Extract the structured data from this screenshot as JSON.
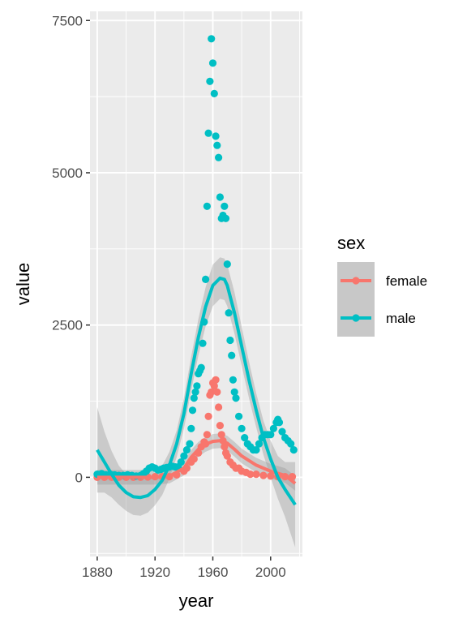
{
  "chart_data": {
    "type": "scatter",
    "xlabel": "year",
    "ylabel": "value",
    "xlim": [
      1875,
      2022
    ],
    "ylim": [
      -1300,
      7650
    ],
    "x_ticks": [
      1880,
      1920,
      1960,
      2000
    ],
    "y_ticks": [
      0,
      2500,
      5000,
      7500
    ],
    "grid": true,
    "legend": {
      "title": "sex",
      "position": "right",
      "entries": [
        "female",
        "male"
      ]
    },
    "colors": {
      "female": "#F8766D",
      "male": "#00BFC4",
      "panel": "#EBEBEB",
      "ribbon": "#999999"
    },
    "series": [
      {
        "name": "female",
        "points": [
          [
            1880,
            0
          ],
          [
            1885,
            0
          ],
          [
            1890,
            0
          ],
          [
            1895,
            0
          ],
          [
            1900,
            0
          ],
          [
            1905,
            0
          ],
          [
            1910,
            0
          ],
          [
            1915,
            5
          ],
          [
            1920,
            10
          ],
          [
            1925,
            10
          ],
          [
            1930,
            10
          ],
          [
            1935,
            40
          ],
          [
            1940,
            100
          ],
          [
            1942,
            150
          ],
          [
            1945,
            250
          ],
          [
            1947,
            300
          ],
          [
            1950,
            400
          ],
          [
            1952,
            500
          ],
          [
            1954,
            580
          ],
          [
            1955,
            550
          ],
          [
            1956,
            700
          ],
          [
            1957,
            1000
          ],
          [
            1958,
            1350
          ],
          [
            1959,
            1400
          ],
          [
            1960,
            1550
          ],
          [
            1961,
            1500
          ],
          [
            1962,
            1600
          ],
          [
            1963,
            1400
          ],
          [
            1964,
            1150
          ],
          [
            1965,
            850
          ],
          [
            1966,
            700
          ],
          [
            1967,
            600
          ],
          [
            1968,
            500
          ],
          [
            1969,
            400
          ],
          [
            1970,
            350
          ],
          [
            1972,
            250
          ],
          [
            1974,
            200
          ],
          [
            1976,
            150
          ],
          [
            1978,
            150
          ],
          [
            1980,
            100
          ],
          [
            1983,
            80
          ],
          [
            1986,
            50
          ],
          [
            1990,
            50
          ],
          [
            1995,
            30
          ],
          [
            2000,
            20
          ],
          [
            2005,
            10
          ],
          [
            2010,
            10
          ],
          [
            2015,
            10
          ]
        ],
        "smooth": [
          [
            1880,
            0
          ],
          [
            1900,
            0
          ],
          [
            1920,
            0
          ],
          [
            1930,
            20
          ],
          [
            1940,
            150
          ],
          [
            1945,
            330
          ],
          [
            1950,
            460
          ],
          [
            1955,
            540
          ],
          [
            1960,
            590
          ],
          [
            1965,
            600
          ],
          [
            1970,
            560
          ],
          [
            1975,
            460
          ],
          [
            1980,
            350
          ],
          [
            1990,
            200
          ],
          [
            2000,
            100
          ],
          [
            2010,
            30
          ],
          [
            2017,
            -100
          ]
        ],
        "smooth_band": 120
      },
      {
        "name": "male",
        "points": [
          [
            1880,
            50
          ],
          [
            1883,
            60
          ],
          [
            1886,
            40
          ],
          [
            1889,
            50
          ],
          [
            1892,
            40
          ],
          [
            1895,
            30
          ],
          [
            1898,
            30
          ],
          [
            1901,
            40
          ],
          [
            1904,
            30
          ],
          [
            1907,
            20
          ],
          [
            1910,
            30
          ],
          [
            1912,
            60
          ],
          [
            1914,
            100
          ],
          [
            1916,
            150
          ],
          [
            1918,
            170
          ],
          [
            1920,
            150
          ],
          [
            1922,
            120
          ],
          [
            1924,
            130
          ],
          [
            1926,
            150
          ],
          [
            1928,
            160
          ],
          [
            1930,
            170
          ],
          [
            1932,
            180
          ],
          [
            1934,
            170
          ],
          [
            1936,
            170
          ],
          [
            1938,
            250
          ],
          [
            1940,
            350
          ],
          [
            1942,
            450
          ],
          [
            1944,
            550
          ],
          [
            1945,
            800
          ],
          [
            1946,
            1100
          ],
          [
            1947,
            1300
          ],
          [
            1948,
            1400
          ],
          [
            1949,
            1500
          ],
          [
            1950,
            1700
          ],
          [
            1951,
            1750
          ],
          [
            1952,
            1800
          ],
          [
            1953,
            2200
          ],
          [
            1954,
            2550
          ],
          [
            1955,
            3250
          ],
          [
            1956,
            4450
          ],
          [
            1957,
            5650
          ],
          [
            1958,
            6500
          ],
          [
            1959,
            7200
          ],
          [
            1960,
            6800
          ],
          [
            1961,
            6300
          ],
          [
            1962,
            5600
          ],
          [
            1963,
            5450
          ],
          [
            1964,
            5250
          ],
          [
            1965,
            4600
          ],
          [
            1966,
            4250
          ],
          [
            1967,
            4300
          ],
          [
            1968,
            4450
          ],
          [
            1969,
            4250
          ],
          [
            1970,
            3500
          ],
          [
            1971,
            2700
          ],
          [
            1972,
            2250
          ],
          [
            1973,
            2000
          ],
          [
            1974,
            1600
          ],
          [
            1975,
            1400
          ],
          [
            1976,
            1300
          ],
          [
            1978,
            1000
          ],
          [
            1980,
            800
          ],
          [
            1982,
            650
          ],
          [
            1984,
            550
          ],
          [
            1986,
            500
          ],
          [
            1988,
            450
          ],
          [
            1990,
            450
          ],
          [
            1992,
            550
          ],
          [
            1994,
            650
          ],
          [
            1996,
            700
          ],
          [
            1998,
            700
          ],
          [
            2000,
            700
          ],
          [
            2002,
            800
          ],
          [
            2004,
            900
          ],
          [
            2005,
            950
          ],
          [
            2006,
            900
          ],
          [
            2008,
            750
          ],
          [
            2010,
            650
          ],
          [
            2012,
            600
          ],
          [
            2014,
            550
          ],
          [
            2016,
            450
          ]
        ],
        "smooth": [
          [
            1880,
            450
          ],
          [
            1885,
            250
          ],
          [
            1890,
            50
          ],
          [
            1895,
            -130
          ],
          [
            1900,
            -250
          ],
          [
            1905,
            -320
          ],
          [
            1910,
            -330
          ],
          [
            1915,
            -300
          ],
          [
            1920,
            -200
          ],
          [
            1925,
            -50
          ],
          [
            1930,
            200
          ],
          [
            1935,
            550
          ],
          [
            1940,
            1050
          ],
          [
            1945,
            1700
          ],
          [
            1950,
            2300
          ],
          [
            1955,
            2800
          ],
          [
            1960,
            3150
          ],
          [
            1965,
            3270
          ],
          [
            1968,
            3250
          ],
          [
            1970,
            3150
          ],
          [
            1975,
            2700
          ],
          [
            1980,
            2150
          ],
          [
            1985,
            1600
          ],
          [
            1990,
            1100
          ],
          [
            1995,
            650
          ],
          [
            2000,
            300
          ],
          [
            2005,
            0
          ],
          [
            2010,
            -200
          ],
          [
            2017,
            -450
          ]
        ],
        "smooth_band": [
          700,
          500,
          380,
          320,
          300,
          300,
          300,
          280,
          260,
          240,
          220,
          220,
          250,
          280,
          300,
          320,
          340,
          340,
          340,
          340,
          340,
          320,
          300,
          280,
          280,
          300,
          350,
          450,
          700
        ]
      }
    ]
  }
}
